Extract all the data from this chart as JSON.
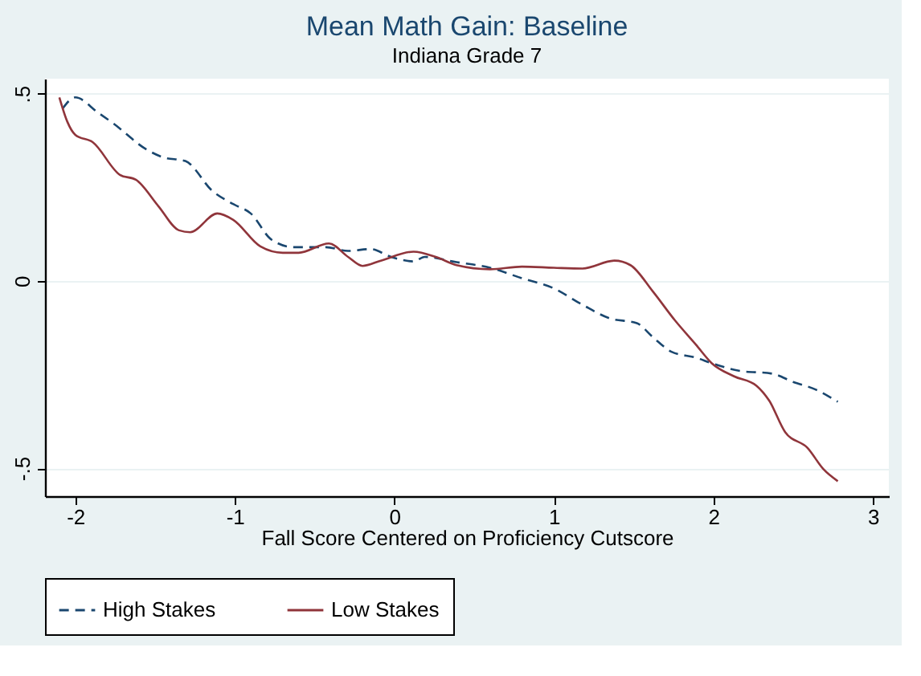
{
  "chart_data": {
    "type": "line",
    "title": "Mean Math Gain: Baseline",
    "subtitle": "Indiana Grade 7",
    "xlabel": "Fall Score Centered on Proficiency Cutscore",
    "xlim": [
      -2.19,
      3.1
    ],
    "xticks": [
      -2,
      -1,
      0,
      1,
      2,
      3
    ],
    "ylim": [
      -0.575,
      0.54
    ],
    "yticks": [
      {
        "value": -0.5,
        "label": "-.5"
      },
      {
        "value": 0,
        "label": "0"
      },
      {
        "value": 0.5,
        "label": ".5"
      }
    ],
    "grid": "y",
    "legend": "bottom",
    "series": [
      {
        "name": "High Stakes",
        "color": "#1a476f",
        "line_style": "dashed",
        "x": [
          -2.08,
          -2.0,
          -1.86,
          -1.76,
          -1.55,
          -1.45,
          -1.31,
          -1.14,
          -1.01,
          -0.9,
          -0.77,
          -0.63,
          -0.43,
          -0.29,
          -0.15,
          -0.02,
          0.12,
          0.19,
          0.39,
          0.6,
          0.8,
          1.0,
          1.18,
          1.35,
          1.52,
          1.62,
          1.74,
          1.89,
          1.99,
          2.16,
          2.37,
          2.5,
          2.64,
          2.78
        ],
        "values": [
          0.46,
          0.49,
          0.45,
          0.42,
          0.35,
          0.33,
          0.32,
          0.24,
          0.205,
          0.18,
          0.11,
          0.09,
          0.09,
          0.08,
          0.085,
          0.064,
          0.052,
          0.064,
          0.05,
          0.035,
          0.007,
          -0.02,
          -0.064,
          -0.1,
          -0.113,
          -0.15,
          -0.19,
          -0.205,
          -0.22,
          -0.24,
          -0.248,
          -0.27,
          -0.29,
          -0.323
        ]
      },
      {
        "name": "Low Stakes",
        "color": "#90353b",
        "line_style": "solid",
        "x": [
          -2.1,
          -2.05,
          -2.0,
          -1.89,
          -1.72,
          -1.62,
          -1.48,
          -1.35,
          -1.28,
          -1.11,
          -1.01,
          -0.84,
          -0.7,
          -0.6,
          -0.41,
          -0.29,
          -0.2,
          -0.085,
          0.12,
          0.26,
          0.39,
          0.6,
          0.8,
          1.0,
          1.18,
          1.38,
          1.48,
          1.62,
          1.76,
          1.89,
          1.99,
          2.13,
          2.27,
          2.35,
          2.45,
          2.59,
          2.69,
          2.78
        ],
        "values": [
          0.49,
          0.425,
          0.39,
          0.37,
          0.283,
          0.27,
          0.2,
          0.135,
          0.13,
          0.18,
          0.163,
          0.092,
          0.075,
          0.075,
          0.1,
          0.064,
          0.04,
          0.054,
          0.078,
          0.064,
          0.042,
          0.031,
          0.038,
          0.035,
          0.033,
          0.054,
          0.042,
          -0.028,
          -0.106,
          -0.17,
          -0.22,
          -0.255,
          -0.28,
          -0.32,
          -0.404,
          -0.446,
          -0.503,
          -0.535
        ]
      }
    ]
  }
}
